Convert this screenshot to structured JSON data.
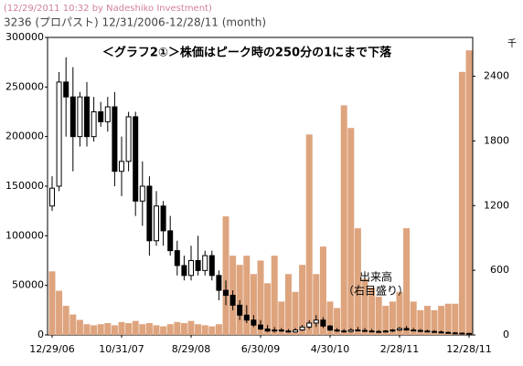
{
  "chart_data": {
    "type": "candlestick",
    "subtitle": "(12/29/2011 10:32 by Nadeshiko Investment)",
    "title": "3236 (プロパスト)  12/31/2006-12/28/11 (month)",
    "annotations": [
      "＜グラフ2①＞株価はピーク時の250分の1にまで下落",
      "出来高",
      "（右目盛り）"
    ],
    "y2_label": "千",
    "categories": [
      "12/29/06",
      null,
      null,
      null,
      null,
      null,
      null,
      null,
      null,
      null,
      "10/31/07",
      null,
      null,
      null,
      null,
      null,
      null,
      null,
      null,
      null,
      "8/29/08",
      null,
      null,
      null,
      null,
      null,
      null,
      null,
      null,
      null,
      "6/30/09",
      null,
      null,
      null,
      null,
      null,
      null,
      null,
      null,
      null,
      "4/30/10",
      null,
      null,
      null,
      null,
      null,
      null,
      null,
      null,
      null,
      "2/28/11",
      null,
      null,
      null,
      null,
      null,
      null,
      null,
      null,
      null,
      "12/28/11"
    ],
    "open": [
      130000,
      150000,
      255000,
      240000,
      200000,
      240000,
      200000,
      225000,
      215000,
      230000,
      165000,
      175000,
      220000,
      135000,
      150000,
      95000,
      130000,
      105000,
      85000,
      70000,
      60000,
      75000,
      65000,
      80000,
      60000,
      45000,
      40000,
      30000,
      20000,
      15000,
      10000,
      6000,
      4000,
      5000,
      4000,
      3000,
      5000,
      8000,
      12000,
      15000,
      9000,
      5000,
      4000,
      3500,
      5000,
      4500,
      4000,
      3500,
      3000,
      4000,
      5000,
      6500,
      5000,
      4500,
      4000,
      3500,
      3000,
      2500,
      2000,
      1800,
      1500
    ],
    "high": [
      160000,
      265000,
      280000,
      270000,
      245000,
      255000,
      240000,
      235000,
      240000,
      245000,
      200000,
      225000,
      225000,
      175000,
      160000,
      145000,
      135000,
      120000,
      95000,
      80000,
      90000,
      100000,
      85000,
      85000,
      65000,
      55000,
      45000,
      35000,
      30000,
      20000,
      15000,
      10000,
      8000,
      7000,
      6000,
      7000,
      10000,
      15000,
      20000,
      18000,
      10000,
      7000,
      6000,
      7000,
      8000,
      7000,
      6000,
      5000,
      5000,
      6000,
      8000,
      9000,
      7000,
      6000,
      5500,
      5000,
      4500,
      3500,
      3000,
      2500,
      2200
    ],
    "low": [
      125000,
      145000,
      200000,
      165000,
      190000,
      190000,
      195000,
      210000,
      205000,
      150000,
      140000,
      165000,
      120000,
      110000,
      80000,
      90000,
      90000,
      80000,
      60000,
      55000,
      55000,
      60000,
      60000,
      55000,
      35000,
      30000,
      25000,
      15000,
      12000,
      8000,
      5000,
      3000,
      2500,
      3000,
      2500,
      2500,
      4000,
      6000,
      8000,
      7000,
      4000,
      3000,
      2500,
      2500,
      4000,
      3500,
      3000,
      2500,
      2500,
      3000,
      4000,
      4500,
      4000,
      3500,
      3000,
      2500,
      2200,
      1800,
      1500,
      1200,
      1000
    ],
    "close": [
      148000,
      255000,
      240000,
      200000,
      240000,
      200000,
      225000,
      215000,
      230000,
      165000,
      175000,
      220000,
      135000,
      150000,
      95000,
      130000,
      105000,
      85000,
      70000,
      60000,
      75000,
      65000,
      80000,
      60000,
      45000,
      40000,
      30000,
      20000,
      15000,
      10000,
      6000,
      4000,
      5000,
      4000,
      3000,
      5000,
      8000,
      12000,
      15000,
      9000,
      5000,
      4000,
      3500,
      5000,
      4500,
      4000,
      3500,
      3000,
      4000,
      5000,
      6500,
      5000,
      4500,
      4000,
      3500,
      3000,
      2500,
      2000,
      1800,
      1500,
      1300
    ],
    "volume": [
      590,
      410,
      270,
      190,
      140,
      100,
      90,
      100,
      110,
      90,
      120,
      110,
      130,
      100,
      110,
      90,
      80,
      100,
      120,
      110,
      130,
      100,
      90,
      80,
      100,
      1100,
      735,
      650,
      735,
      565,
      690,
      480,
      735,
      310,
      565,
      400,
      650,
      1860,
      565,
      820,
      310,
      250,
      2130,
      1920,
      990,
      520,
      440,
      355,
      270,
      310,
      400,
      990,
      310,
      230,
      270,
      230,
      270,
      290,
      290,
      2440,
      2640
    ],
    "volume_color": "#dea47e",
    "candle_color": "#000000",
    "ylim": [
      0,
      300000
    ],
    "yticks": [
      0,
      50000,
      100000,
      150000,
      200000,
      250000,
      300000
    ],
    "y2lim": [
      0,
      2760
    ],
    "y2ticks": [
      0,
      600,
      1200,
      1800,
      2400
    ]
  }
}
